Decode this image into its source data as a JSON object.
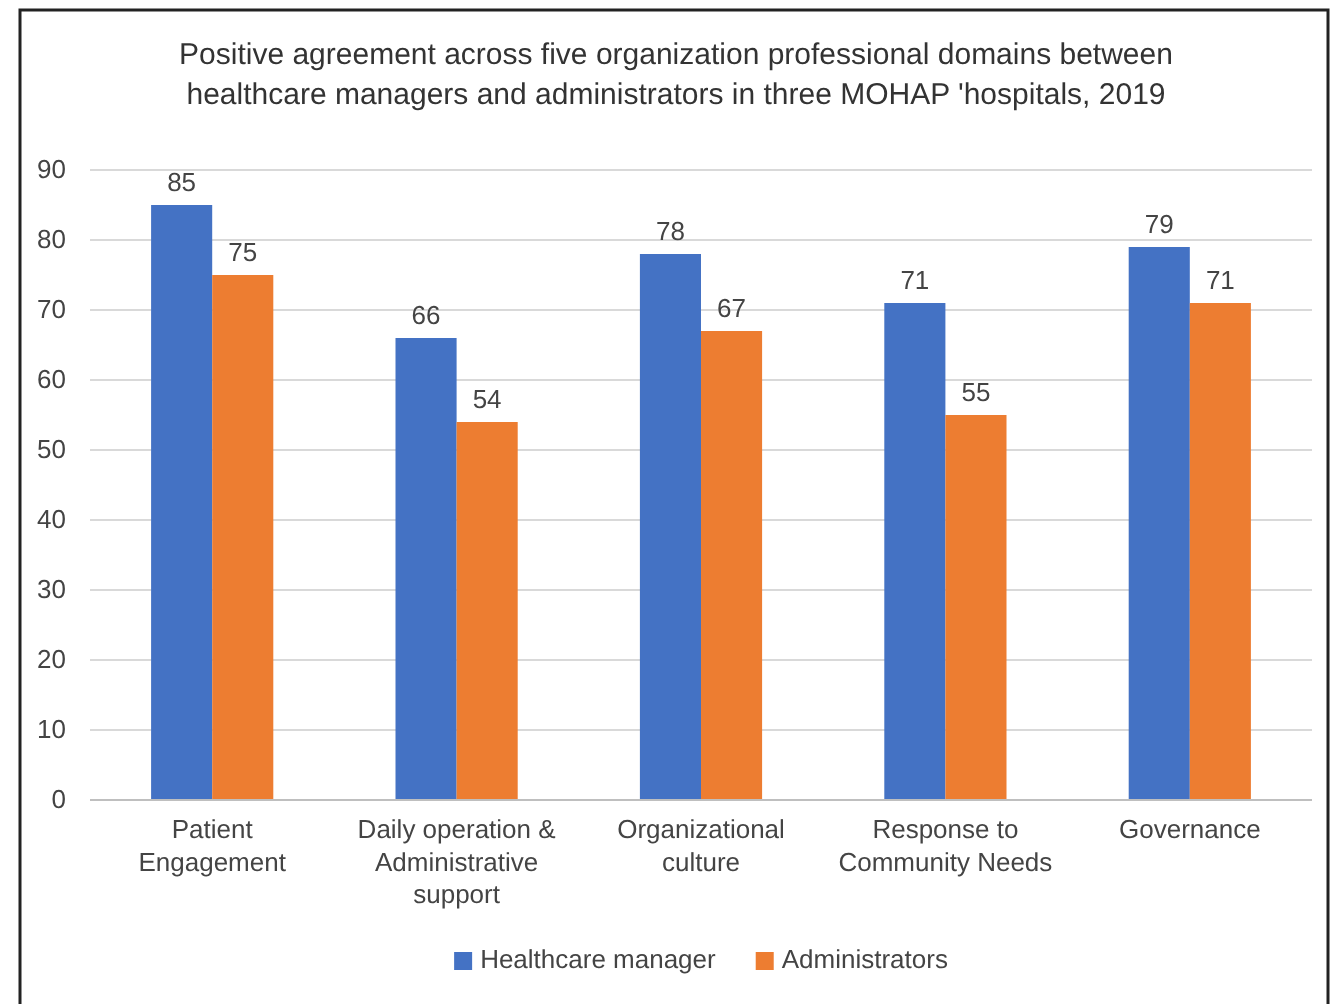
{
  "chart_data": {
    "type": "bar",
    "title": "Positive agreement across five organization professional domains between healthcare managers and administrators in three MOHAP 'hospitals, 2019",
    "categories": [
      "Patient Engagement",
      "Daily operation & Administrative support",
      "Organizational culture",
      "Response to Community Needs",
      "Governance"
    ],
    "series": [
      {
        "name": "Healthcare manager",
        "color": "#4472c4",
        "values": [
          85,
          66,
          78,
          71,
          79
        ]
      },
      {
        "name": "Administrators",
        "color": "#ed7d31",
        "values": [
          75,
          54,
          67,
          55,
          71
        ]
      }
    ],
    "ylim": [
      0,
      90
    ],
    "yticks": [
      0,
      10,
      20,
      30,
      40,
      50,
      60,
      70,
      80,
      90
    ],
    "grid": "y",
    "data_labels": true,
    "legend": "bottom"
  }
}
